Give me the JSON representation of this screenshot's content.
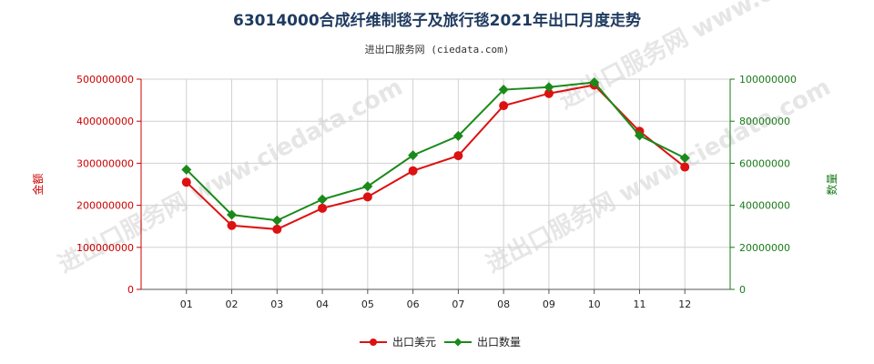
{
  "title": "63014000合成纤维制毯子及旅行毯2021年出口月度走势",
  "subtitle": "进出口服务网 (ciedata.com)",
  "watermark": "进出口服务网 www.ciedata.com",
  "colors": {
    "left_axis": "#cc0000",
    "right_axis": "#1a7a1a",
    "grid": "#d0d0d0"
  },
  "chart_data": {
    "type": "line",
    "categories": [
      "01",
      "02",
      "03",
      "04",
      "05",
      "06",
      "07",
      "08",
      "09",
      "10",
      "11",
      "12"
    ],
    "ylabel_left": "金额",
    "ylabel_right": "数量",
    "ylim_left": [
      0,
      500000000
    ],
    "ylim_right": [
      0,
      100000000
    ],
    "yticks_left": [
      "0",
      "100000000",
      "200000000",
      "300000000",
      "400000000",
      "500000000"
    ],
    "yticks_right": [
      "0",
      "20000000",
      "40000000",
      "60000000",
      "80000000",
      "100000000"
    ],
    "grid": true,
    "legend_placement": "bottom-center",
    "series": [
      {
        "name": "出口美元",
        "axis": "left",
        "color": "#dd1111",
        "marker": "circle",
        "values": [
          255000000,
          152000000,
          143000000,
          193000000,
          220000000,
          282000000,
          318000000,
          437000000,
          466000000,
          486000000,
          376000000,
          291000000
        ]
      },
      {
        "name": "出口数量",
        "axis": "right",
        "color": "#1a8a1a",
        "marker": "diamond",
        "values": [
          57000000,
          35500000,
          32800000,
          42800000,
          49000000,
          63800000,
          73000000,
          95000000,
          96200000,
          98500000,
          73200000,
          62500000
        ]
      }
    ]
  }
}
